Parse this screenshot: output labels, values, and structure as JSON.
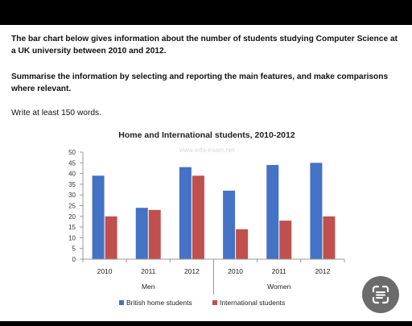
{
  "prompt": {
    "para1": "The bar chart below gives information about the number of students studying Computer Science at a UK university between 2010 and 2012.",
    "para2": "Summarise the information by selecting and reporting the main features, and make comparisons where relevant.",
    "para3": "Write at least 150 words."
  },
  "chart_data": {
    "type": "bar",
    "title": "Home and International students, 2010-2012",
    "watermark": "www.ielts-exam.net",
    "categories": [
      "2010",
      "2011",
      "2012",
      "2010",
      "2011",
      "2012"
    ],
    "groups": [
      {
        "label": "Men",
        "span": [
          0,
          2
        ]
      },
      {
        "label": "Women",
        "span": [
          3,
          5
        ]
      }
    ],
    "series": [
      {
        "name": "British home students",
        "color": "#4472C4",
        "values": [
          39,
          24,
          43,
          32,
          44,
          45
        ]
      },
      {
        "name": "International students",
        "color": "#C0504D",
        "values": [
          20,
          23,
          39,
          14,
          18,
          20
        ]
      }
    ],
    "ylim": [
      0,
      50
    ],
    "yticks": [
      0,
      5,
      10,
      15,
      20,
      25,
      30,
      35,
      40,
      45,
      50
    ],
    "grid": false,
    "legend_position": "bottom"
  },
  "colors": {
    "lens_button": "#6b6b6b"
  },
  "icons": {
    "lens": "google-lens-icon"
  }
}
